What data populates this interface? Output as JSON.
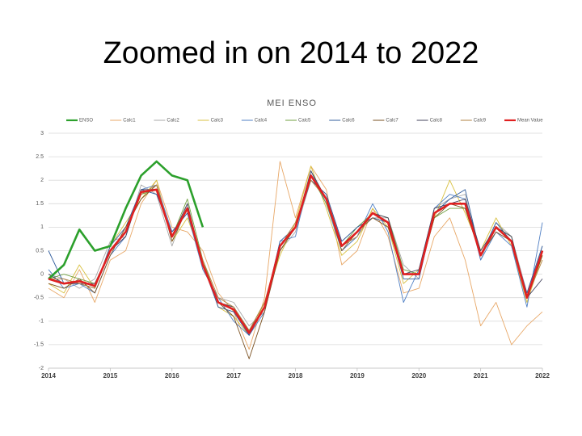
{
  "title": "Zoomed in on 2014 to 2022",
  "chart_data": {
    "type": "line",
    "title": "MEI ENSO",
    "x": [
      2014,
      2014.25,
      2014.5,
      2014.75,
      2015,
      2015.25,
      2015.5,
      2015.75,
      2016,
      2016.25,
      2016.5,
      2016.75,
      2017,
      2017.25,
      2017.5,
      2017.75,
      2018,
      2018.25,
      2018.5,
      2018.75,
      2019,
      2019.25,
      2019.5,
      2019.75,
      2020,
      2020.25,
      2020.5,
      2020.75,
      2021,
      2021.25,
      2021.5,
      2021.75,
      2022
    ],
    "xlim": [
      2014,
      2022
    ],
    "xticks": [
      2014,
      2015,
      2016,
      2017,
      2018,
      2019,
      2020,
      2021,
      2022
    ],
    "ylim": [
      -2,
      3
    ],
    "yticks": [
      3,
      2.5,
      2,
      1.5,
      1,
      0.5,
      0,
      -0.5,
      -1,
      -1.5,
      -2
    ],
    "grid": true,
    "series": [
      {
        "name": "ENSO",
        "color": "#2ca02c",
        "values": [
          -0.1,
          0.2,
          0.95,
          0.5,
          0.6,
          1.4,
          2.1,
          2.4,
          2.1,
          2.0,
          1.0,
          null,
          null,
          null,
          null,
          null,
          null,
          null,
          null,
          null,
          null,
          null,
          null,
          null,
          null,
          null,
          null,
          null,
          null,
          null,
          null,
          null,
          null
        ]
      },
      {
        "name": "Calc1",
        "color": "#e8a868",
        "values": [
          -0.3,
          -0.5,
          0.1,
          -0.6,
          0.3,
          0.5,
          1.5,
          2.0,
          1.0,
          0.9,
          0.5,
          -0.4,
          -0.8,
          -1.6,
          -0.5,
          2.4,
          1.2,
          2.3,
          1.8,
          0.2,
          0.5,
          1.4,
          0.8,
          -0.4,
          -0.3,
          0.8,
          1.2,
          0.3,
          -1.1,
          -0.6,
          -1.5,
          -1.1,
          -0.8
        ]
      },
      {
        "name": "Calc2",
        "color": "#a8a8a8",
        "values": [
          0.0,
          -0.1,
          -0.3,
          -0.1,
          0.7,
          0.8,
          1.9,
          1.7,
          0.6,
          1.5,
          0.1,
          -0.5,
          -0.6,
          -1.1,
          -0.8,
          0.5,
          0.9,
          2.0,
          1.7,
          0.7,
          1.0,
          1.2,
          1.2,
          0.2,
          -0.1,
          1.4,
          1.6,
          1.7,
          0.3,
          1.1,
          0.8,
          -0.4,
          0.6
        ]
      },
      {
        "name": "Calc3",
        "color": "#d8c040",
        "values": [
          -0.2,
          -0.4,
          0.2,
          -0.3,
          0.6,
          1.1,
          1.6,
          2.0,
          0.7,
          1.2,
          0.3,
          -0.7,
          -0.9,
          -1.3,
          -0.6,
          0.4,
          1.1,
          2.3,
          1.4,
          0.4,
          0.7,
          1.4,
          1.0,
          -0.2,
          0.1,
          1.2,
          2.0,
          1.3,
          0.5,
          1.2,
          0.6,
          -0.6,
          0.4
        ]
      },
      {
        "name": "Calc4",
        "color": "#4f7fc4",
        "values": [
          0.1,
          -0.3,
          -0.2,
          -0.4,
          0.4,
          0.8,
          1.8,
          1.9,
          0.9,
          1.3,
          0.1,
          -0.5,
          -1.0,
          -1.3,
          -0.8,
          0.7,
          0.8,
          2.2,
          1.5,
          0.5,
          0.8,
          1.5,
          0.9,
          -0.6,
          0.1,
          1.4,
          1.7,
          1.6,
          0.3,
          0.9,
          0.6,
          -0.7,
          1.1
        ]
      },
      {
        "name": "Calc5",
        "color": "#70a040",
        "values": [
          -0.1,
          0.0,
          -0.1,
          -0.2,
          0.5,
          0.9,
          1.7,
          1.8,
          0.8,
          1.6,
          0.3,
          -0.6,
          -0.7,
          -1.2,
          -0.6,
          0.5,
          1.0,
          2.1,
          1.5,
          0.6,
          1.0,
          1.3,
          1.2,
          0.1,
          0.0,
          1.2,
          1.4,
          1.4,
          0.4,
          1.0,
          0.8,
          -0.5,
          0.5
        ]
      },
      {
        "name": "Calc6",
        "color": "#305c9c",
        "values": [
          0.5,
          -0.2,
          -0.2,
          -0.3,
          0.6,
          1.0,
          1.8,
          1.7,
          0.9,
          1.3,
          0.2,
          -0.7,
          -0.8,
          -1.3,
          -0.7,
          0.7,
          1.0,
          2.0,
          1.7,
          0.7,
          1.0,
          1.2,
          1.1,
          -0.1,
          -0.1,
          1.3,
          1.6,
          1.8,
          0.4,
          1.1,
          0.7,
          -0.4,
          0.6
        ]
      },
      {
        "name": "Calc7",
        "color": "#7a5020",
        "values": [
          -0.2,
          -0.3,
          -0.1,
          -0.4,
          0.4,
          1.0,
          1.6,
          1.9,
          0.7,
          1.4,
          0.2,
          -0.6,
          -0.9,
          -1.8,
          -0.8,
          0.5,
          1.0,
          2.1,
          1.6,
          0.5,
          0.9,
          1.2,
          1.0,
          0.0,
          0.0,
          1.2,
          1.5,
          1.4,
          0.4,
          0.9,
          0.7,
          -0.5,
          0.4
        ]
      },
      {
        "name": "Calc8",
        "color": "#44445e",
        "values": [
          0.0,
          -0.2,
          -0.2,
          -0.2,
          0.5,
          0.8,
          1.8,
          1.8,
          0.8,
          1.5,
          0.2,
          -0.6,
          -0.7,
          -1.2,
          -0.7,
          0.6,
          1.0,
          2.2,
          1.6,
          0.6,
          0.9,
          1.3,
          1.2,
          0.0,
          0.1,
          1.4,
          1.5,
          1.6,
          0.5,
          1.0,
          0.8,
          -0.5,
          -0.1
        ]
      },
      {
        "name": "Calc9",
        "color": "#b08040",
        "values": [
          -0.1,
          -0.1,
          -0.2,
          -0.3,
          0.5,
          0.9,
          1.7,
          1.9,
          0.8,
          1.4,
          0.3,
          -0.5,
          -0.7,
          -1.2,
          -0.6,
          0.6,
          1.1,
          2.0,
          1.6,
          0.6,
          0.8,
          1.3,
          1.1,
          0.0,
          0.0,
          1.3,
          1.5,
          1.5,
          0.4,
          1.0,
          0.7,
          -0.5,
          0.3
        ]
      },
      {
        "name": "Mean Value",
        "color": "#e02020",
        "values": [
          -0.1,
          -0.2,
          -0.15,
          -0.25,
          0.5,
          0.9,
          1.75,
          1.8,
          0.8,
          1.4,
          0.2,
          -0.6,
          -0.75,
          -1.25,
          -0.7,
          0.6,
          1.0,
          2.1,
          1.6,
          0.6,
          0.9,
          1.3,
          1.1,
          0.0,
          0.0,
          1.3,
          1.5,
          1.5,
          0.4,
          1.0,
          0.7,
          -0.5,
          0.5
        ]
      }
    ]
  }
}
